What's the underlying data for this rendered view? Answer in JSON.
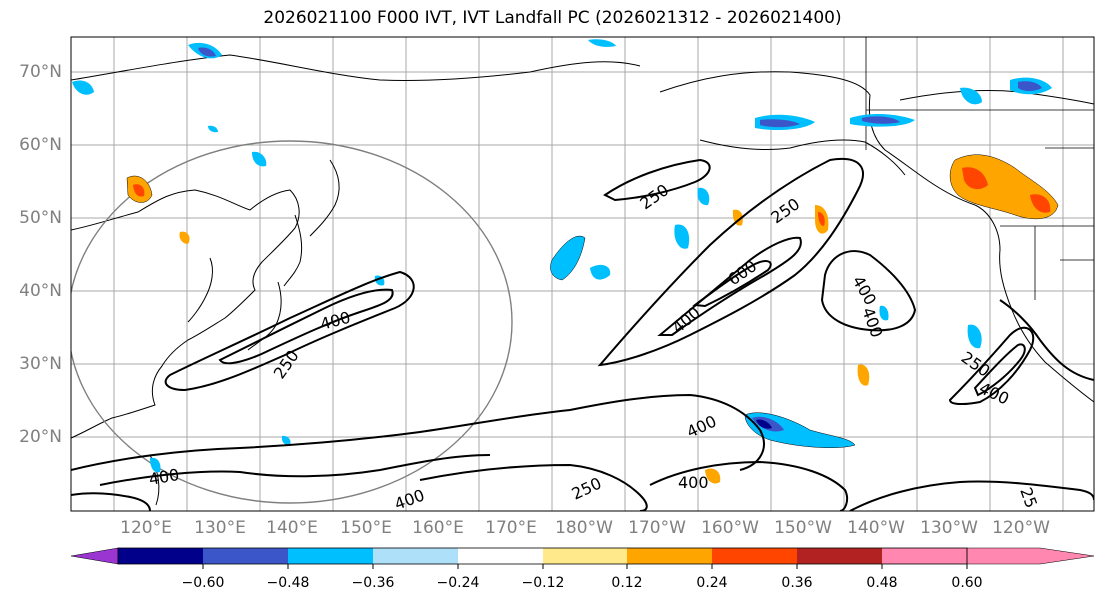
{
  "title": "2026021100 F000 IVT, IVT Landfall PC (2026021312 - 2026021400)",
  "lat_labels": [
    "70°N",
    "60°N",
    "50°N",
    "40°N",
    "30°N",
    "20°N"
  ],
  "lon_labels": [
    "120°E",
    "130°E",
    "140°E",
    "150°E",
    "160°E",
    "170°E",
    "180°W",
    "170°W",
    "160°W",
    "150°W",
    "140°W",
    "130°W",
    "120°W"
  ],
  "contour_labels": [
    "250",
    "400",
    "250",
    "250",
    "400",
    "600",
    "400",
    "400",
    "250",
    "400",
    "400",
    "400",
    "250",
    "400",
    "25",
    "400"
  ],
  "colorbar": {
    "ticks": [
      "−0.60",
      "−0.48",
      "−0.36",
      "−0.24",
      "−0.12",
      "0.12",
      "0.24",
      "0.36",
      "0.48",
      "0.60"
    ],
    "colors": [
      "#9a35d2",
      "#00008b",
      "#3b56c8",
      "#00bfff",
      "#aee0fa",
      "#ffffff",
      "#ffe98a",
      "#ffa500",
      "#ff4500",
      "#b22222",
      "#ff87b0"
    ]
  }
}
